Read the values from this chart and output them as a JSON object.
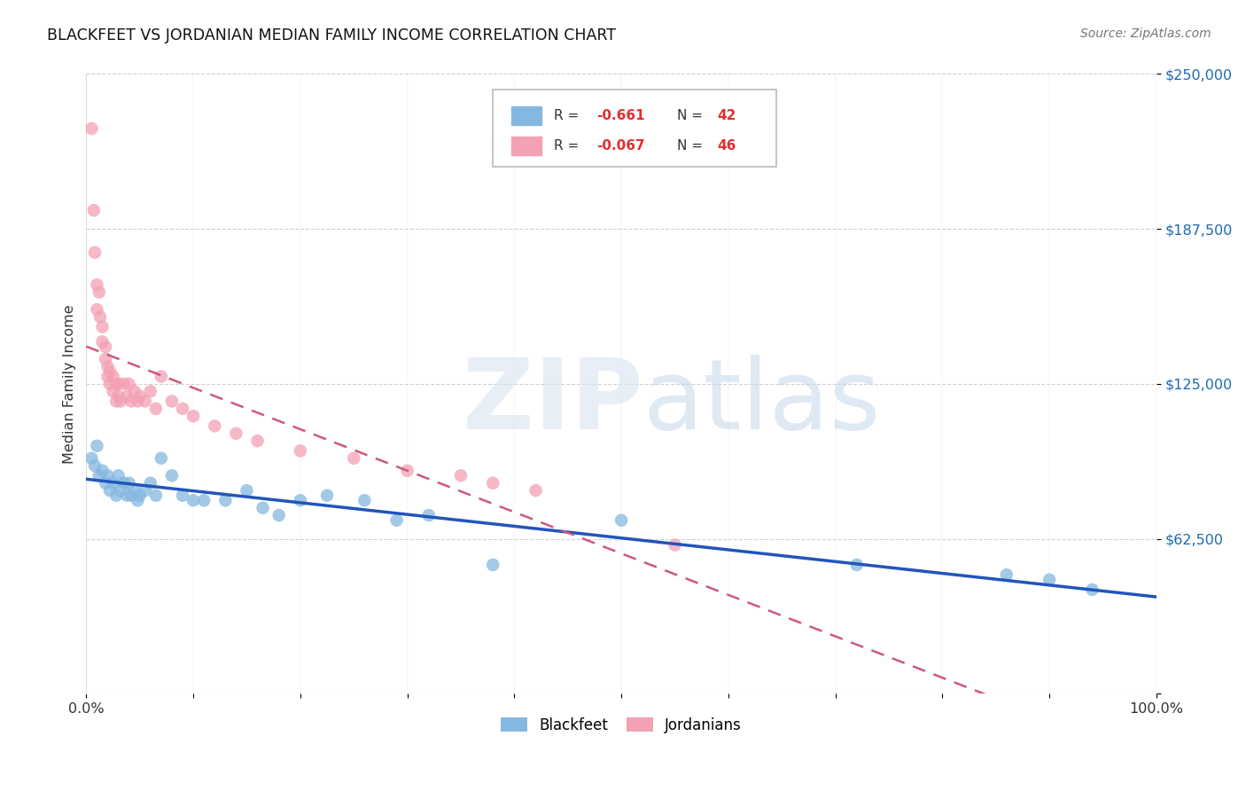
{
  "title": "BLACKFEET VS JORDANIAN MEDIAN FAMILY INCOME CORRELATION CHART",
  "source": "Source: ZipAtlas.com",
  "ylabel": "Median Family Income",
  "yticks": [
    0,
    62500,
    125000,
    187500,
    250000
  ],
  "xlim": [
    0.0,
    1.0
  ],
  "ylim": [
    0,
    250000
  ],
  "blue_color": "#85b8e0",
  "pink_color": "#f4a0b5",
  "blue_line_color": "#2255bb",
  "pink_line_color": "#d05878",
  "pink_line_dash": [
    6,
    4
  ],
  "background_color": "#ffffff",
  "grid_color": "#cccccc",
  "blackfeet_x": [
    0.005,
    0.008,
    0.01,
    0.012,
    0.015,
    0.018,
    0.02,
    0.022,
    0.025,
    0.028,
    0.03,
    0.032,
    0.035,
    0.038,
    0.04,
    0.042,
    0.045,
    0.048,
    0.05,
    0.055,
    0.06,
    0.065,
    0.07,
    0.08,
    0.09,
    0.1,
    0.11,
    0.13,
    0.15,
    0.165,
    0.18,
    0.2,
    0.225,
    0.26,
    0.29,
    0.32,
    0.38,
    0.5,
    0.72,
    0.86,
    0.9,
    0.94
  ],
  "blackfeet_y": [
    95000,
    92000,
    100000,
    88000,
    90000,
    85000,
    88000,
    82000,
    85000,
    80000,
    88000,
    82000,
    85000,
    80000,
    85000,
    80000,
    82000,
    78000,
    80000,
    82000,
    85000,
    80000,
    95000,
    88000,
    80000,
    78000,
    78000,
    78000,
    82000,
    75000,
    72000,
    78000,
    80000,
    78000,
    70000,
    72000,
    52000,
    70000,
    52000,
    48000,
    46000,
    42000
  ],
  "jordanian_x": [
    0.005,
    0.007,
    0.008,
    0.01,
    0.01,
    0.012,
    0.013,
    0.015,
    0.015,
    0.018,
    0.018,
    0.02,
    0.02,
    0.022,
    0.022,
    0.025,
    0.025,
    0.028,
    0.028,
    0.03,
    0.03,
    0.032,
    0.035,
    0.038,
    0.04,
    0.042,
    0.045,
    0.048,
    0.05,
    0.055,
    0.06,
    0.065,
    0.07,
    0.08,
    0.09,
    0.1,
    0.12,
    0.14,
    0.16,
    0.2,
    0.25,
    0.3,
    0.35,
    0.38,
    0.42,
    0.55
  ],
  "jordanian_y": [
    228000,
    195000,
    178000,
    165000,
    155000,
    162000,
    152000,
    148000,
    142000,
    140000,
    135000,
    132000,
    128000,
    130000,
    125000,
    128000,
    122000,
    125000,
    118000,
    125000,
    120000,
    118000,
    125000,
    120000,
    125000,
    118000,
    122000,
    118000,
    120000,
    118000,
    122000,
    115000,
    128000,
    118000,
    115000,
    112000,
    108000,
    105000,
    102000,
    98000,
    95000,
    90000,
    88000,
    85000,
    82000,
    60000
  ]
}
